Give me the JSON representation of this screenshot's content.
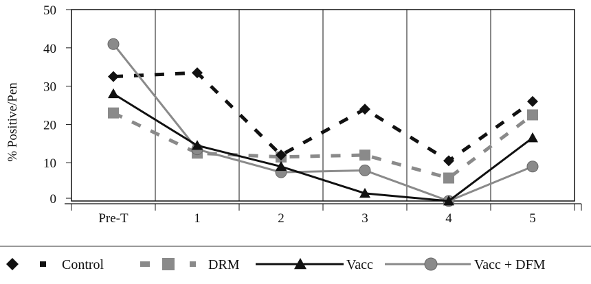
{
  "chart_data": {
    "type": "line",
    "title": "",
    "xlabel": "",
    "ylabel": "% Positive/Pen",
    "categories": [
      "Pre-T",
      "1",
      "2",
      "3",
      "4",
      "5"
    ],
    "ylim": [
      0,
      50
    ],
    "yticks": [
      0,
      10,
      20,
      30,
      40,
      50
    ],
    "grid": "vertical",
    "legend": "bottom",
    "series": [
      {
        "name": "Control",
        "marker": "diamond",
        "line": "dashed",
        "color": "#111111",
        "values": [
          32.5,
          33.5,
          12,
          24,
          10.5,
          26
        ]
      },
      {
        "name": "DRM",
        "marker": "square",
        "line": "dashed",
        "color": "#8a8a8a",
        "values": [
          23,
          12.5,
          11.5,
          12,
          6,
          22.5
        ]
      },
      {
        "name": "Vacc",
        "marker": "triangle",
        "line": "solid",
        "color": "#111111",
        "values": [
          28,
          14.5,
          9,
          2,
          0,
          16.5
        ]
      },
      {
        "name": "Vacc + DFM",
        "marker": "circle",
        "line": "solid",
        "color": "#8a8a8a",
        "values": [
          41,
          13.5,
          7.5,
          8,
          0,
          9
        ]
      }
    ]
  }
}
